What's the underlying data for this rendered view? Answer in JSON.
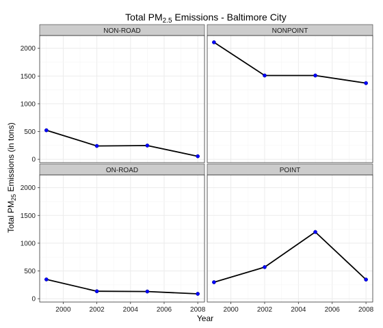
{
  "chart_data": {
    "type": "line",
    "title_main": "Total PM",
    "title_sub": "2.5",
    "title_tail": " Emissions - Baltimore City",
    "xlabel": "Year",
    "ylabel_main": "Total PM",
    "ylabel_sub": "25",
    "ylabel_tail": " Emissions (in tons)",
    "xlim": [
      1998.6,
      2008.4
    ],
    "ylim": [
      -60,
      2230
    ],
    "x_ticks": [
      2000,
      2002,
      2004,
      2006,
      2008
    ],
    "y_ticks": [
      0,
      500,
      1000,
      1500,
      2000
    ],
    "grid": true,
    "line_color": "#000000",
    "point_color": "#0000ff",
    "panel_bg": "#ffffff",
    "strip_bg": "#cccccc",
    "grid_color": "#ebebeb",
    "panels": [
      {
        "name": "NON-ROAD",
        "x": [
          1999,
          2002,
          2005,
          2008
        ],
        "y": [
          523,
          241,
          248,
          55
        ]
      },
      {
        "name": "NONPOINT",
        "x": [
          1999,
          2002,
          2005,
          2008
        ],
        "y": [
          2108,
          1510,
          1510,
          1373
        ]
      },
      {
        "name": "ON-ROAD",
        "x": [
          1999,
          2002,
          2005,
          2008
        ],
        "y": [
          347,
          134,
          130,
          88
        ]
      },
      {
        "name": "POINT",
        "x": [
          1999,
          2002,
          2005,
          2008
        ],
        "y": [
          297,
          569,
          1202,
          345
        ]
      }
    ]
  }
}
